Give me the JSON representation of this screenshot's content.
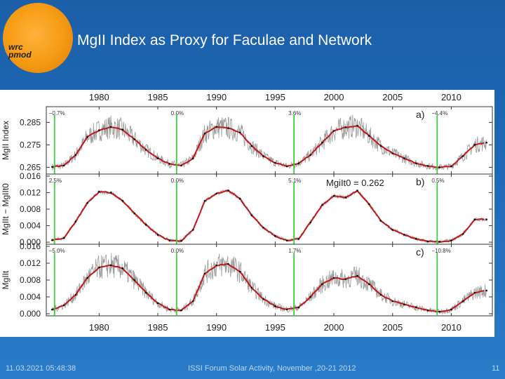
{
  "slide": {
    "title": "MgII Index as Proxy for Faculae and Network",
    "logo_lines": [
      "wrc",
      "pmod"
    ],
    "footer_left": "11.03.2021 05:48:38",
    "footer_center": "ISSI Forum Solar Activity, November ,20-21 2012",
    "footer_right": "11"
  },
  "colors": {
    "background": "#1f6ab8",
    "smooth_line": "#c0181a",
    "raw_data": "#9a9a9a",
    "minima_lines": "#3ccf3c",
    "title": "#ffffff"
  },
  "chart_data": {
    "type": "line",
    "x_ticks": [
      1980,
      1985,
      1990,
      1995,
      2000,
      2005,
      2010
    ],
    "xlim": [
      1975.5,
      2013.5
    ],
    "minima_years": [
      1976.2,
      1986.6,
      1996.6,
      2008.8
    ],
    "panels": [
      {
        "label": "a)",
        "ylabel": "MgII Index",
        "ylim": [
          0.262,
          0.292
        ],
        "yticks": [
          "0.285",
          "0.275",
          "0.265"
        ],
        "ytick_values": [
          0.285,
          0.275,
          0.265
        ],
        "annotation": "",
        "percent_labels": [
          "−0.7%",
          "0.0%",
          "3.6%",
          "−4.4%"
        ],
        "x": [
          1976.0,
          1977.0,
          1978.0,
          1979.0,
          1980.0,
          1981.0,
          1982.0,
          1983.0,
          1984.0,
          1985.0,
          1986.0,
          1987.0,
          1988.0,
          1989.0,
          1990.0,
          1991.0,
          1992.0,
          1993.0,
          1994.0,
          1995.0,
          1996.0,
          1997.0,
          1998.0,
          1999.0,
          2000.0,
          2001.0,
          2002.0,
          2003.0,
          2004.0,
          2005.0,
          2006.0,
          2007.0,
          2008.0,
          2009.0,
          2010.0,
          2011.0,
          2012.0,
          2013.0
        ],
        "values": [
          0.2652,
          0.2658,
          0.2705,
          0.2785,
          0.2815,
          0.283,
          0.2818,
          0.2775,
          0.2728,
          0.269,
          0.2665,
          0.2658,
          0.269,
          0.28,
          0.283,
          0.2825,
          0.2805,
          0.2745,
          0.27,
          0.267,
          0.2655,
          0.2668,
          0.2705,
          0.276,
          0.2812,
          0.2828,
          0.2835,
          0.279,
          0.2745,
          0.2712,
          0.269,
          0.2668,
          0.2656,
          0.265,
          0.2655,
          0.27,
          0.275,
          0.276
        ]
      },
      {
        "label": "b)",
        "ylabel": "MgIIt − MgIIt0",
        "ylim": [
          -0.0005,
          0.0165
        ],
        "yticks": [
          "0.016",
          "0.012",
          "0.008",
          "0.004",
          "0.000"
        ],
        "ytick_values": [
          0.016,
          0.012,
          0.008,
          0.004,
          0.0
        ],
        "annotation": "MgiIt0 = 0.262",
        "percent_labels": [
          "2.5%",
          "0.0%",
          "5.1%",
          "0.5%"
        ],
        "x": [
          1976.0,
          1977.0,
          1978.0,
          1979.0,
          1980.0,
          1981.0,
          1982.0,
          1983.0,
          1984.0,
          1985.0,
          1986.0,
          1987.0,
          1988.0,
          1989.0,
          1990.0,
          1991.0,
          1992.0,
          1993.0,
          1994.0,
          1995.0,
          1996.0,
          1997.0,
          1998.0,
          1999.0,
          2000.0,
          2001.0,
          2002.0,
          2003.0,
          2004.0,
          2005.0,
          2006.0,
          2007.0,
          2008.0,
          2009.0,
          2010.0,
          2011.0,
          2012.0,
          2013.0
        ],
        "values": [
          0.0005,
          0.001,
          0.005,
          0.0095,
          0.0122,
          0.012,
          0.01,
          0.007,
          0.0042,
          0.0018,
          0.0004,
          0.0003,
          0.003,
          0.01,
          0.0118,
          0.0125,
          0.0105,
          0.0065,
          0.0035,
          0.0015,
          0.0004,
          0.0008,
          0.0048,
          0.009,
          0.0112,
          0.0108,
          0.0125,
          0.0092,
          0.0052,
          0.003,
          0.0018,
          0.0008,
          0.0002,
          0.0001,
          0.0004,
          0.002,
          0.0055,
          0.0055
        ]
      },
      {
        "label": "c)",
        "ylabel": "MgIIt",
        "ylim": [
          -0.0005,
          0.0165
        ],
        "yticks": [
          "0.016",
          "0.012",
          "0.008",
          "0.004",
          "0.000"
        ],
        "ytick_values": [
          0.016,
          0.012,
          0.008,
          0.004,
          0.0
        ],
        "annotation": "",
        "percent_labels": [
          "−5.0%",
          "0.0%",
          "1.7%",
          "−10.8%"
        ],
        "x": [
          1976.0,
          1977.0,
          1978.0,
          1979.0,
          1980.0,
          1981.0,
          1982.0,
          1983.0,
          1984.0,
          1985.0,
          1986.0,
          1987.0,
          1988.0,
          1989.0,
          1990.0,
          1991.0,
          1992.0,
          1993.0,
          1994.0,
          1995.0,
          1996.0,
          1997.0,
          1998.0,
          1999.0,
          2000.0,
          2001.0,
          2002.0,
          2003.0,
          2004.0,
          2005.0,
          2006.0,
          2007.0,
          2008.0,
          2009.0,
          2010.0,
          2011.0,
          2012.0,
          2013.0
        ],
        "values": [
          0.001,
          0.002,
          0.0045,
          0.0085,
          0.011,
          0.0115,
          0.0108,
          0.008,
          0.005,
          0.0025,
          0.001,
          0.0008,
          0.003,
          0.0095,
          0.0115,
          0.0118,
          0.01,
          0.0062,
          0.0035,
          0.0018,
          0.001,
          0.0015,
          0.004,
          0.007,
          0.0085,
          0.0082,
          0.009,
          0.007,
          0.0045,
          0.003,
          0.0022,
          0.0015,
          0.0008,
          0.0005,
          0.001,
          0.003,
          0.005,
          0.0055
        ]
      }
    ]
  }
}
